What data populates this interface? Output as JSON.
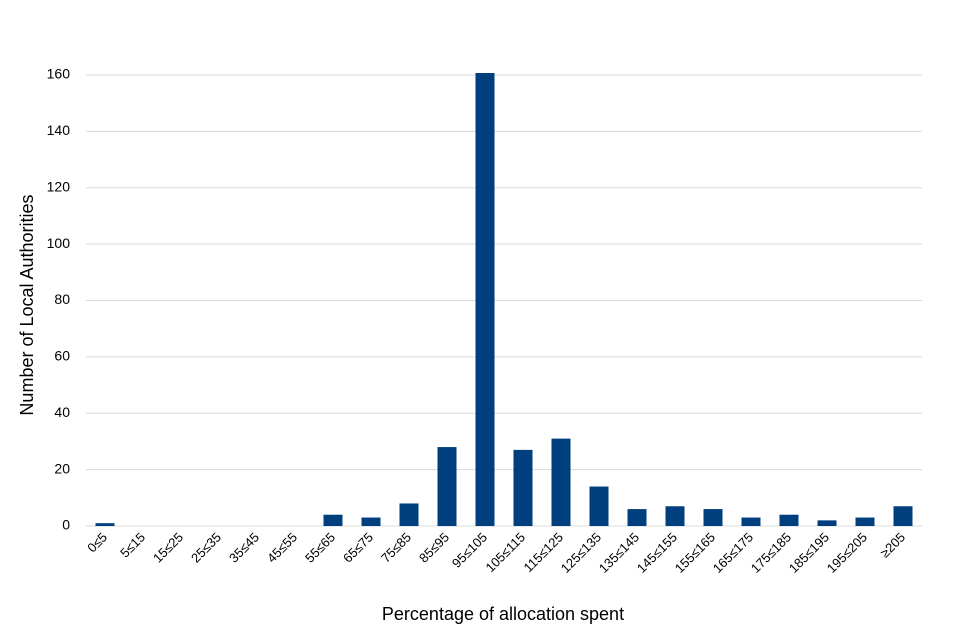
{
  "chart_data": {
    "type": "bar",
    "title": "",
    "xlabel": "Percentage of allocation spent",
    "ylabel": "Number of Local Authorities",
    "ylim": [
      0,
      160
    ],
    "yticks": [
      0,
      20,
      40,
      60,
      80,
      100,
      120,
      140,
      160
    ],
    "grid": true,
    "legend": "none",
    "bar_color": "#003f7d",
    "categories": [
      "0≤5",
      "5≤15",
      "15≤25",
      "25≤35",
      "35≤45",
      "45≤55",
      "55≤65",
      "65≤75",
      "75≤85",
      "85≤95",
      "95≤105",
      "105≤115",
      "115≤125",
      "125≤135",
      "135≤145",
      "145≤155",
      "155≤165",
      "165≤175",
      "175≤185",
      "185≤195",
      "195≤205",
      "≥205"
    ],
    "values": [
      1,
      0,
      0,
      0,
      0,
      0,
      4,
      3,
      8,
      28,
      161,
      27,
      31,
      14,
      6,
      7,
      6,
      3,
      4,
      2,
      3,
      7
    ]
  }
}
